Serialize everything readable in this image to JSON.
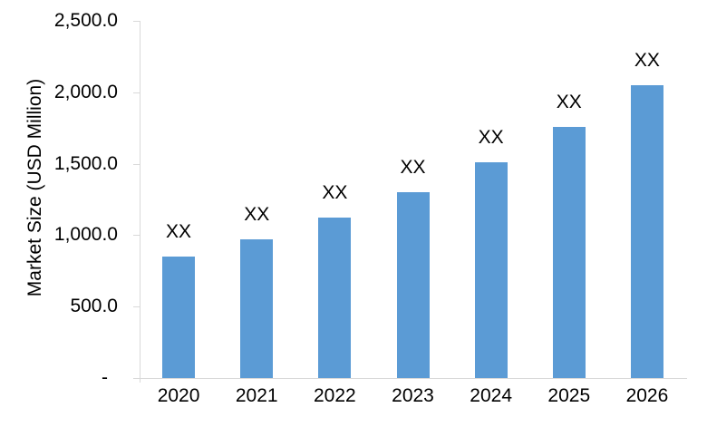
{
  "chart_data": {
    "type": "bar",
    "title": "",
    "ylabel": "Market Size (USD Million)",
    "xlabel": "",
    "categories": [
      "2020",
      "2021",
      "2022",
      "2023",
      "2024",
      "2025",
      "2026"
    ],
    "values": [
      850,
      970,
      1120,
      1300,
      1510,
      1760,
      2050
    ],
    "bar_labels": [
      "XX",
      "XX",
      "XX",
      "XX",
      "XX",
      "XX",
      "XX"
    ],
    "y_ticks": [
      {
        "value": 2500,
        "label": "2,500.0"
      },
      {
        "value": 2000,
        "label": "2,000.0"
      },
      {
        "value": 1500,
        "label": "1,500.0"
      },
      {
        "value": 1000,
        "label": "1,000.0"
      },
      {
        "value": 500,
        "label": "500.0"
      },
      {
        "value": 0,
        "label": "-"
      }
    ],
    "ylim": [
      0,
      2500
    ],
    "grid": false,
    "legend": null,
    "colors": {
      "bar": "#5B9BD5",
      "axis": "#D9D9D9",
      "text": "#000000",
      "background": "#FFFFFF"
    }
  }
}
